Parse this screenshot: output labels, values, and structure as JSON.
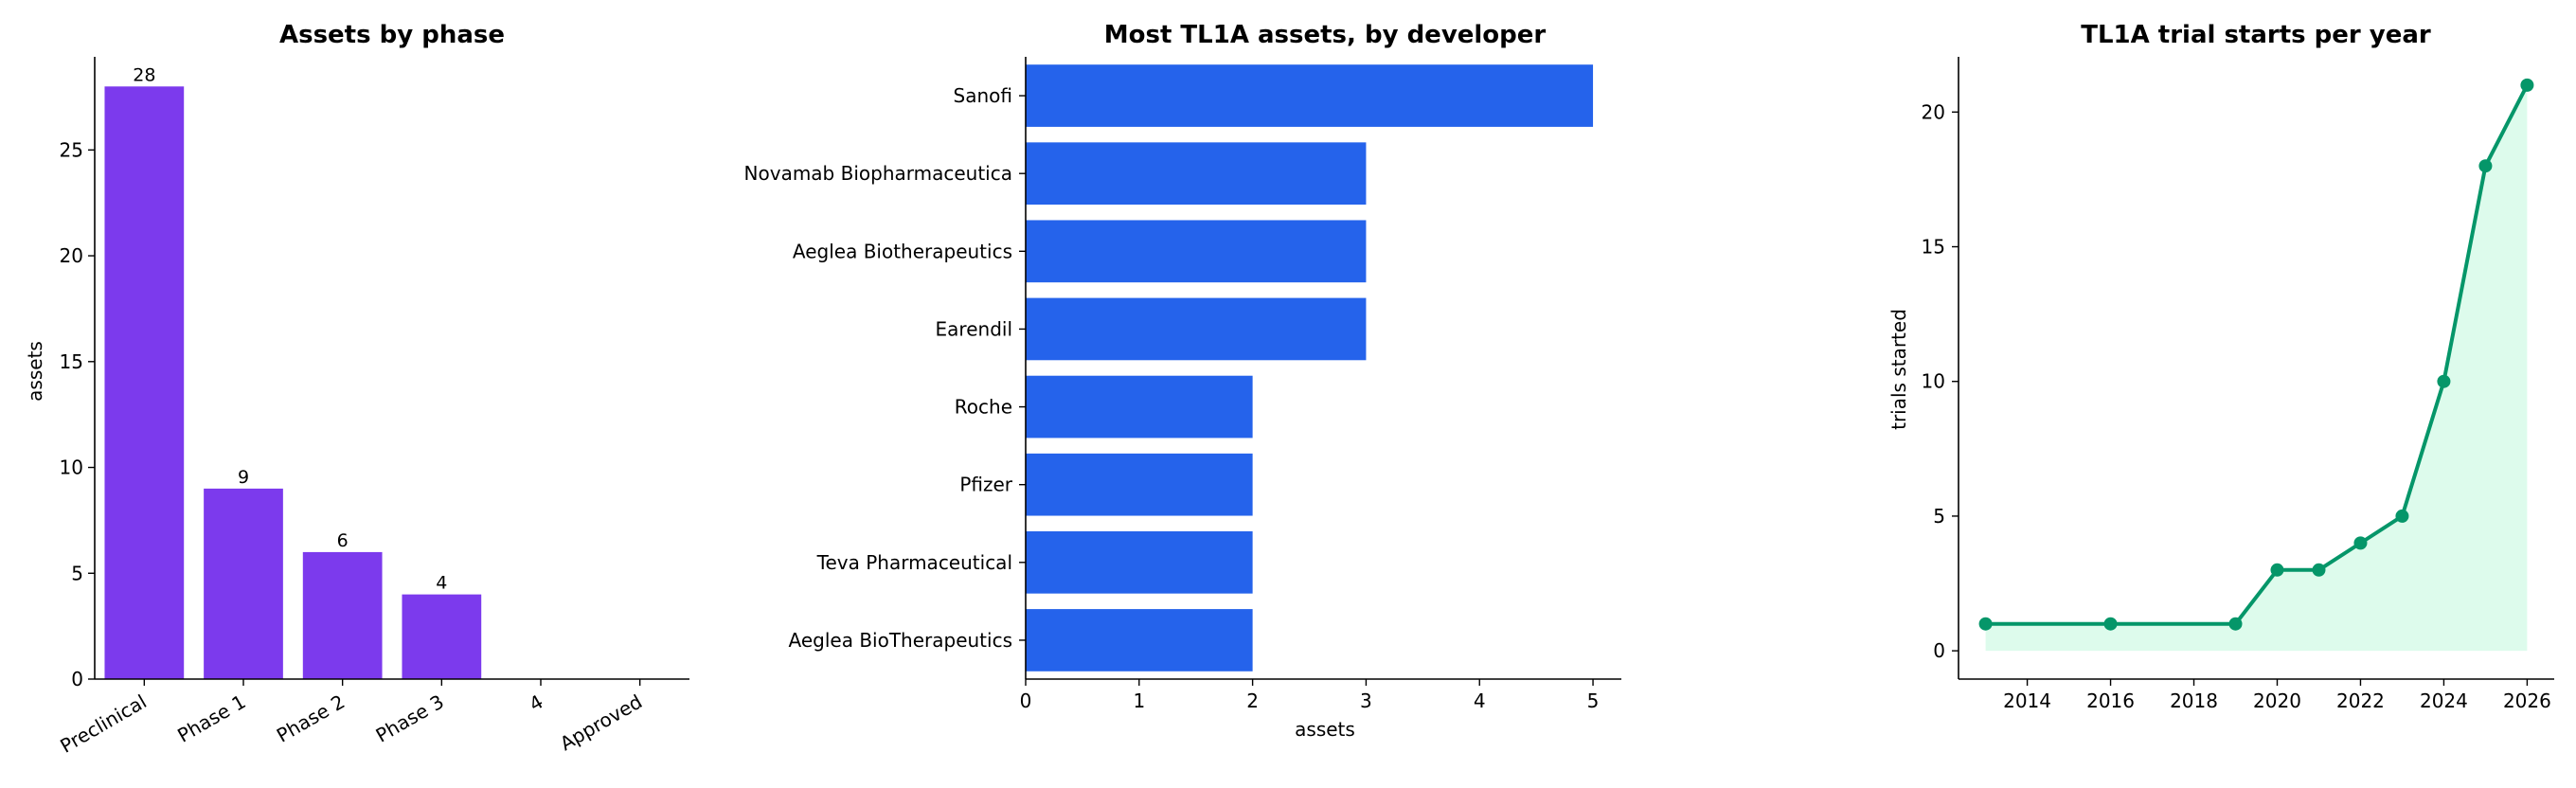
{
  "chart_data": [
    {
      "type": "bar",
      "title": "Assets by phase",
      "ylabel": "assets",
      "xlabel": "",
      "categories": [
        "Preclinical",
        "Phase 1",
        "Phase 2",
        "Phase 3",
        "4",
        "Approved"
      ],
      "values": [
        28,
        9,
        6,
        4,
        0,
        0
      ],
      "data_labels": [
        "28",
        "9",
        "6",
        "4",
        "",
        ""
      ],
      "ylim": [
        0,
        29.4
      ],
      "yticks": [
        0,
        5,
        10,
        15,
        20,
        25
      ],
      "color": "#7c3aed",
      "grid": false
    },
    {
      "type": "bar",
      "orientation": "horizontal",
      "title": "Most TL1A assets, by developer",
      "xlabel": "assets",
      "ylabel": "",
      "categories": [
        "Sanofi",
        "Novamab Biopharmaceutica",
        "Aeglea Biotherapeutics",
        "Earendil",
        "Roche",
        "Pfizer",
        "Teva Pharmaceutical",
        "Aeglea BioTherapeutics"
      ],
      "values": [
        5,
        3,
        3,
        3,
        2,
        2,
        2,
        2
      ],
      "xlim": [
        0,
        5.25
      ],
      "xticks": [
        0,
        1,
        2,
        3,
        4,
        5
      ],
      "color": "#2563eb",
      "grid": false
    },
    {
      "type": "area",
      "title": "TL1A trial starts per year",
      "ylabel": "trials started",
      "xlabel": "",
      "x": [
        2013,
        2016,
        2019,
        2020,
        2021,
        2022,
        2023,
        2024,
        2025,
        2026
      ],
      "y": [
        1,
        1,
        1,
        3,
        3,
        4,
        5,
        10,
        18,
        21
      ],
      "xlim": [
        2012.35,
        2026.65
      ],
      "ylim": [
        -1.05,
        22.05
      ],
      "xticks": [
        2014,
        2016,
        2018,
        2020,
        2022,
        2024,
        2026
      ],
      "yticks": [
        0,
        5,
        10,
        15,
        20
      ],
      "color": "#059669",
      "fill_color": "#d1fae5",
      "grid": false
    }
  ]
}
